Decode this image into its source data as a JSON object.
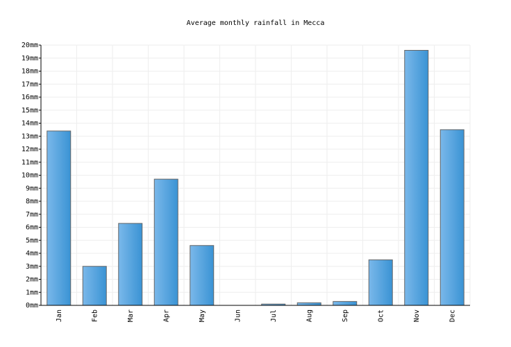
{
  "chart_data": {
    "type": "bar",
    "title": "Average monthly rainfall in Mecca",
    "categories": [
      "Jan",
      "Feb",
      "Mar",
      "Apr",
      "May",
      "Jun",
      "Jul",
      "Aug",
      "Sep",
      "Oct",
      "Nov",
      "Dec"
    ],
    "values": [
      13.4,
      3.0,
      6.3,
      9.7,
      4.6,
      0,
      0.1,
      0.2,
      0.3,
      3.5,
      19.6,
      13.5
    ],
    "color": "#5aa6e0",
    "ylim": [
      0,
      20
    ],
    "yticks": [
      {
        "value": 0,
        "label": "0mm"
      },
      {
        "value": 1,
        "label": "1mm"
      },
      {
        "value": 2,
        "label": "2mm"
      },
      {
        "value": 3,
        "label": "3mm"
      },
      {
        "value": 4,
        "label": "4mm"
      },
      {
        "value": 5,
        "label": "5mm"
      },
      {
        "value": 6,
        "label": "6mm"
      },
      {
        "value": 7,
        "label": "7mm"
      },
      {
        "value": 8,
        "label": "8mm"
      },
      {
        "value": 9,
        "label": "9mm"
      },
      {
        "value": 10,
        "label": "10mm"
      },
      {
        "value": 11,
        "label": "11mm"
      },
      {
        "value": 12,
        "label": "12mm"
      },
      {
        "value": 13,
        "label": "13mm"
      },
      {
        "value": 14,
        "label": "14mm"
      },
      {
        "value": 15,
        "label": "15mm"
      },
      {
        "value": 16,
        "label": "16mm"
      },
      {
        "value": 17,
        "label": "17mm"
      },
      {
        "value": 18,
        "label": "18mm"
      },
      {
        "value": 19,
        "label": "19mm"
      },
      {
        "value": 20,
        "label": "20mm"
      }
    ],
    "grid": true
  }
}
